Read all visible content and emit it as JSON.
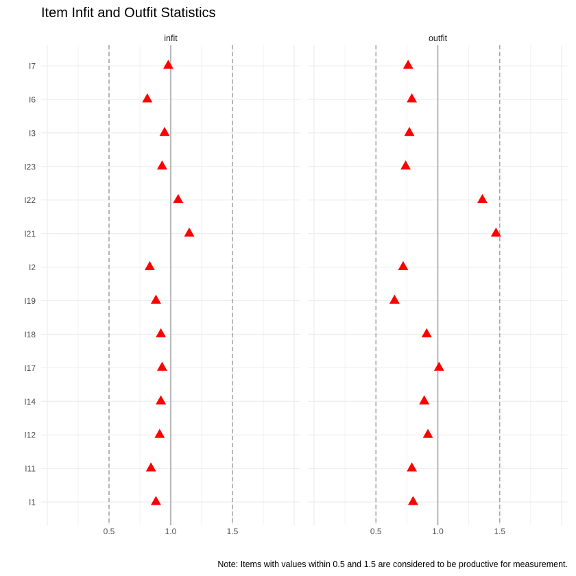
{
  "chart_data": {
    "type": "scatter",
    "title": "Item Infit and Outfit Statistics",
    "caption": "Note: Items with values within 0.5 and 1.5 are considered to be productive for measurement.",
    "xlabel": "",
    "ylabel": "",
    "xlim": [
      -0.05,
      2.05
    ],
    "x_ticks": [
      0.5,
      1.0,
      1.5
    ],
    "x_tick_labels": [
      "0.5",
      "1.0",
      "1.5"
    ],
    "reference_lines": {
      "solid": 1.0,
      "dashed": [
        0.5,
        1.5
      ]
    },
    "categories": [
      "I7",
      "I6",
      "I3",
      "I23",
      "I22",
      "I21",
      "I2",
      "I19",
      "I18",
      "I17",
      "I14",
      "I12",
      "I11",
      "I1"
    ],
    "panels": [
      {
        "label": "infit",
        "values": [
          0.98,
          0.81,
          0.95,
          0.93,
          1.06,
          1.15,
          0.83,
          0.88,
          0.92,
          0.93,
          0.92,
          0.91,
          0.84,
          0.88
        ]
      },
      {
        "label": "outfit",
        "values": [
          0.76,
          0.79,
          0.77,
          0.74,
          1.36,
          1.47,
          0.72,
          0.65,
          0.91,
          1.01,
          0.89,
          0.92,
          0.79,
          0.8
        ]
      }
    ],
    "marker": "triangle",
    "marker_color": "#ff0000",
    "grid": true
  }
}
